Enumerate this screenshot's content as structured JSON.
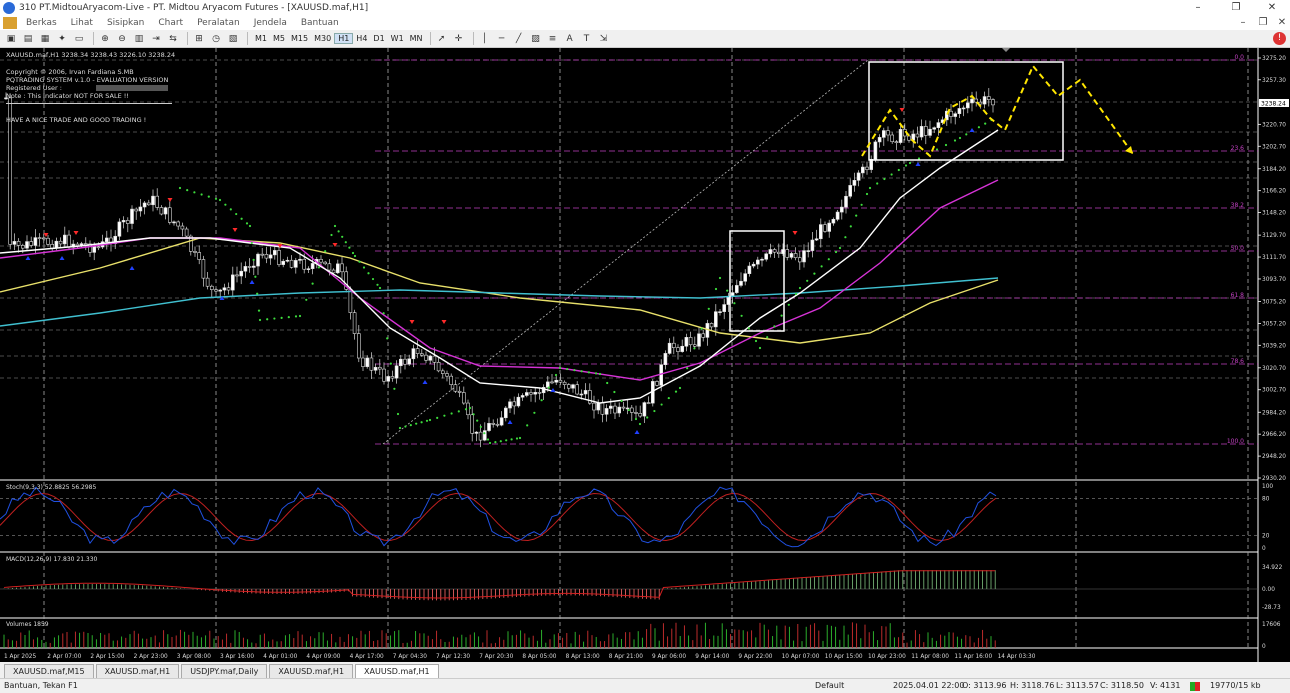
{
  "window": {
    "title": "310 PT.MidtouAryacom-Live - PT. Midtou Aryacom Futures - [XAUUSD.maf,H1]",
    "controls": [
      "–",
      "❐",
      "✕"
    ]
  },
  "menu": [
    "Berkas",
    "Lihat",
    "Sisipkan",
    "Chart",
    "Peralatan",
    "Jendela",
    "Bantuan"
  ],
  "toolbar": {
    "timeframes": [
      "M1",
      "M5",
      "M15",
      "M30",
      "H1",
      "H4",
      "D1",
      "W1",
      "MN"
    ],
    "active_timeframe": "H1",
    "notification_badge": "!"
  },
  "chart": {
    "symbol_line": "XAUUSD.maf,H1  3238.34 3238.43 3226.10 3238.24",
    "info_lines": [
      "Copyright © 2006, Irvan Fardiana S.MB",
      "PQTRADING SYSTEM v.1.0 - EVALUATION VERSION",
      "Registered User :",
      "Note : This Indicator NOT FOR SALE !!"
    ],
    "slogan": "HAVE A NICE TRADE AND GOOD TRADING !",
    "current_price": "3238.24",
    "price_ticks": [
      "3275.20",
      "3257.30",
      "3238.24",
      "3220.70",
      "3202.70",
      "3184.20",
      "3166.20",
      "3148.20",
      "3129.70",
      "3111.70",
      "3093.70",
      "3075.20",
      "3057.20",
      "3039.20",
      "3020.70",
      "3002.70",
      "2984.20",
      "2966.20",
      "2948.20",
      "2930.20"
    ],
    "fib_labels": [
      "0.0",
      "23.6",
      "38.2",
      "50.0",
      "61.8",
      "78.6",
      "100.0"
    ],
    "x_labels": [
      "1 Apr 2025",
      "2 Apr 07:00",
      "2 Apr 15:00",
      "2 Apr 23:00",
      "3 Apr 08:00",
      "3 Apr 16:00",
      "4 Apr 01:00",
      "4 Apr 09:00",
      "4 Apr 17:00",
      "7 Apr 04:30",
      "7 Apr 12:30",
      "7 Apr 20:30",
      "8 Apr 05:00",
      "8 Apr 13:00",
      "8 Apr 21:00",
      "9 Apr 06:00",
      "9 Apr 14:00",
      "9 Apr 22:00",
      "10 Apr 07:00",
      "10 Apr 15:00",
      "10 Apr 23:00",
      "11 Apr 08:00",
      "11 Apr 16:00",
      "14 Apr 03:30"
    ],
    "stoch_label": "Stoch(9,3,3) 52.8825 56.2985",
    "stoch_ticks": [
      "100",
      "80",
      "20",
      "0"
    ],
    "macd_label": "MACD(12,26,9) 17.830 21.330",
    "macd_ticks": [
      "34.922",
      "0.00",
      "-28.73"
    ],
    "volume_label": "Volumes 1859",
    "volume_ticks": [
      "17606",
      "0"
    ]
  },
  "tabs": [
    {
      "label": "XAUUSD.maf,M15",
      "active": false
    },
    {
      "label": "XAUUSD.maf,H1",
      "active": false
    },
    {
      "label": "USDJPY.maf,Daily",
      "active": false
    },
    {
      "label": "XAUUSD.maf,H1",
      "active": false
    },
    {
      "label": "XAUUSD.maf,H1",
      "active": true
    }
  ],
  "status": {
    "help": "Bantuan, Tekan F1",
    "profile": "Default",
    "time": "2025.04.01 22:00",
    "open": "O: 3113.96",
    "high": "H: 3118.76",
    "low": "L: 3113.57",
    "close": "C: 3118.50",
    "volume": "V: 4131",
    "traffic": "19770/15 kb"
  },
  "colors": {
    "bull": "#1ec81e",
    "bear": "#ff2a2a",
    "ma_white": "#ffffff",
    "ma_magenta": "#d633d6",
    "ma_cyan": "#40c0d0",
    "ma_yellow": "#e8e06a",
    "psar": "#3ddc3d",
    "fib": "#c040c0",
    "annotation": "#ffe600"
  }
}
